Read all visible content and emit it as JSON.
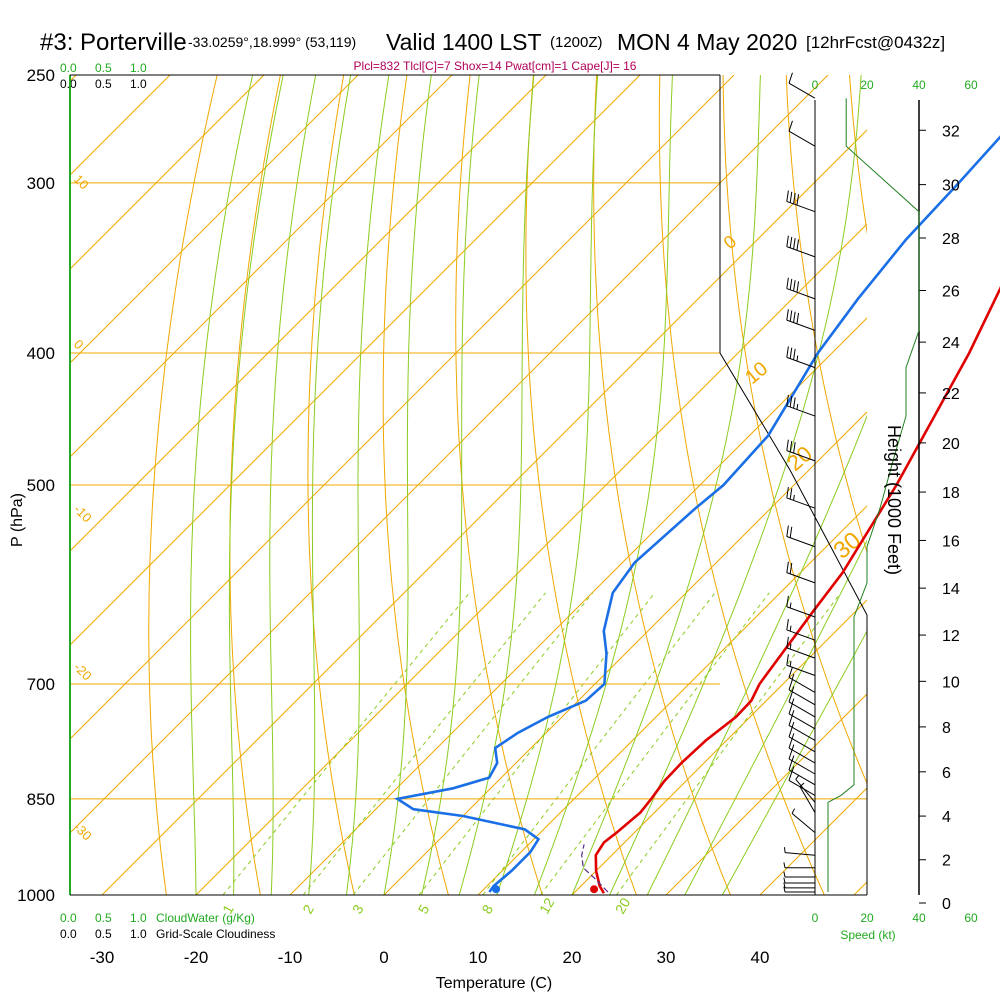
{
  "header": {
    "station": "#3: Porterville",
    "coords": "-33.0259°,18.999° (53,119)",
    "valid": "Valid 1400 LST",
    "utc": "(1200Z)",
    "date": "MON 4 May 2020",
    "forecast": "[12hrFcst@0432z]",
    "indices": "Plcl=832 Tlcl[C]=7 Shox=14 Pwat[cm]=1 Cape[J]= 16"
  },
  "legend": {
    "cloudwater_label": "CloudWater (g/Kg)",
    "cloudiness_label": "Grid-Scale Cloudiness",
    "cloudwater_ticks": [
      "0.0",
      "0.5",
      "1.0"
    ],
    "cloudiness_ticks": [
      "0.0",
      "0.5",
      "1.0"
    ]
  },
  "colors": {
    "temperature": "#e00000",
    "dewpoint": "#1a6fe6",
    "isotherm": "#f0a800",
    "moist_adiabat": "#8ccc20",
    "mixing_ratio": "#8ccc20",
    "green_text": "#22aa22",
    "index_text": "#b0005a",
    "wind_speed": "#208020"
  },
  "chart_data": {
    "type": "line",
    "subtype": "skew-T log-P sounding",
    "xlabel": "Temperature (C)",
    "ylabel": "P (hPa)",
    "x_ticks": [
      "-30",
      "-20",
      "-10",
      "0",
      "10",
      "20",
      "30",
      "40"
    ],
    "y_ticks": [
      "250",
      "300",
      "400",
      "500",
      "700",
      "850",
      "1000"
    ],
    "xlim": [
      -35,
      45
    ],
    "ylim": [
      1000,
      250
    ],
    "series": [
      {
        "name": "Temperature",
        "points": [
          [
            23.2,
            997
          ],
          [
            22,
            985
          ],
          [
            20,
            960
          ],
          [
            18.3,
            935
          ],
          [
            17.8,
            915
          ],
          [
            18.1,
            900
          ],
          [
            18.5,
            870
          ],
          [
            18.2,
            850
          ],
          [
            17.7,
            825
          ],
          [
            17.6,
            800
          ],
          [
            17.8,
            770
          ],
          [
            18.5,
            740
          ],
          [
            18.4,
            720
          ],
          [
            17.5,
            700
          ],
          [
            15.5,
            620
          ],
          [
            14.5,
            580
          ],
          [
            10.9,
            500
          ],
          [
            4.6,
            400
          ],
          [
            -0.7,
            340
          ],
          [
            -3.7,
            300
          ],
          [
            -6.2,
            270
          ],
          [
            -6.8,
            260
          ]
        ]
      },
      {
        "name": "Dewpoint",
        "points": [
          [
            10.9,
            995
          ],
          [
            10.7,
            985
          ],
          [
            11,
            960
          ],
          [
            11,
            930
          ],
          [
            10.5,
            910
          ],
          [
            8,
            895
          ],
          [
            0,
            875
          ],
          [
            -6,
            865
          ],
          [
            -8.8,
            850
          ],
          [
            -4,
            835
          ],
          [
            -1.3,
            820
          ],
          [
            -2,
            800
          ],
          [
            -3.8,
            780
          ],
          [
            -3,
            760
          ],
          [
            -1.5,
            740
          ],
          [
            0.8,
            720
          ],
          [
            1,
            700
          ],
          [
            -2,
            665
          ],
          [
            -4.7,
            640
          ],
          [
            -7.8,
            600
          ],
          [
            -8.7,
            570
          ],
          [
            -8,
            520
          ],
          [
            -7.5,
            500
          ],
          [
            -8,
            460
          ],
          [
            -11.5,
            400
          ],
          [
            -13,
            365
          ],
          [
            -14.2,
            330
          ],
          [
            -14.6,
            300
          ],
          [
            -15.5,
            260
          ]
        ]
      },
      {
        "name": "Parcel",
        "points": [
          [
            23.5,
            995
          ],
          [
            21,
            975
          ],
          [
            18.3,
            955
          ],
          [
            16.8,
            935
          ],
          [
            15.9,
            918
          ]
        ]
      }
    ],
    "markers": [
      {
        "name": "Surface Temperature",
        "t": 24.5,
        "p": 997
      },
      {
        "name": "Surface Dewpoint",
        "t": 12.8,
        "p": 997
      }
    ],
    "isotherm_labels": {
      "left": [
        "10",
        "0",
        "-10",
        "-20",
        "-30"
      ],
      "right": [
        "0",
        "10",
        "20",
        "30"
      ]
    },
    "mixing_ratio_labels": [
      "1",
      "2",
      "3",
      "5",
      "8",
      "12",
      "20"
    ],
    "wind_panel": {
      "xlabel": "Speed (kt)",
      "speed_ticks": [
        "0",
        "20",
        "40",
        "60"
      ],
      "height_label": "Height (1000 Feet)",
      "height_ticks": [
        "0",
        "2",
        "4",
        "6",
        "8",
        "10",
        "12",
        "14",
        "16",
        "18",
        "20",
        "22",
        "24",
        "26",
        "28",
        "30",
        "32"
      ],
      "barbs": [
        {
          "p": 260,
          "spd": 12,
          "dir": 300
        },
        {
          "p": 282,
          "spd": 12,
          "dir": 300
        },
        {
          "p": 315,
          "spd": 40,
          "dir": 290
        },
        {
          "p": 340,
          "spd": 40,
          "dir": 290
        },
        {
          "p": 365,
          "spd": 40,
          "dir": 290
        },
        {
          "p": 385,
          "spd": 40,
          "dir": 290
        },
        {
          "p": 410,
          "spd": 35,
          "dir": 290
        },
        {
          "p": 445,
          "spd": 35,
          "dir": 290
        },
        {
          "p": 480,
          "spd": 30,
          "dir": 290
        },
        {
          "p": 520,
          "spd": 25,
          "dir": 290
        },
        {
          "p": 555,
          "spd": 20,
          "dir": 290
        },
        {
          "p": 590,
          "spd": 20,
          "dir": 290
        },
        {
          "p": 625,
          "spd": 15,
          "dir": 290
        },
        {
          "p": 650,
          "spd": 15,
          "dir": 290
        },
        {
          "p": 670,
          "spd": 15,
          "dir": 290
        },
        {
          "p": 690,
          "spd": 15,
          "dir": 290
        },
        {
          "p": 710,
          "spd": 15,
          "dir": 300
        },
        {
          "p": 725,
          "spd": 15,
          "dir": 300
        },
        {
          "p": 740,
          "spd": 15,
          "dir": 300
        },
        {
          "p": 755,
          "spd": 15,
          "dir": 300
        },
        {
          "p": 770,
          "spd": 15,
          "dir": 300
        },
        {
          "p": 785,
          "spd": 15,
          "dir": 300
        },
        {
          "p": 800,
          "spd": 15,
          "dir": 300
        },
        {
          "p": 815,
          "spd": 15,
          "dir": 300
        },
        {
          "p": 830,
          "spd": 15,
          "dir": 300
        },
        {
          "p": 845,
          "spd": 10,
          "dir": 300
        },
        {
          "p": 855,
          "spd": 5,
          "dir": 320
        },
        {
          "p": 870,
          "spd": 5,
          "dir": 330
        },
        {
          "p": 900,
          "spd": 5,
          "dir": 310
        },
        {
          "p": 935,
          "spd": 5,
          "dir": 275
        },
        {
          "p": 955,
          "spd": 5,
          "dir": 270
        },
        {
          "p": 970,
          "spd": 5,
          "dir": 270
        },
        {
          "p": 980,
          "spd": 5,
          "dir": 270
        },
        {
          "p": 988,
          "spd": 5,
          "dir": 270
        },
        {
          "p": 995,
          "spd": 5,
          "dir": 270
        }
      ]
    }
  }
}
